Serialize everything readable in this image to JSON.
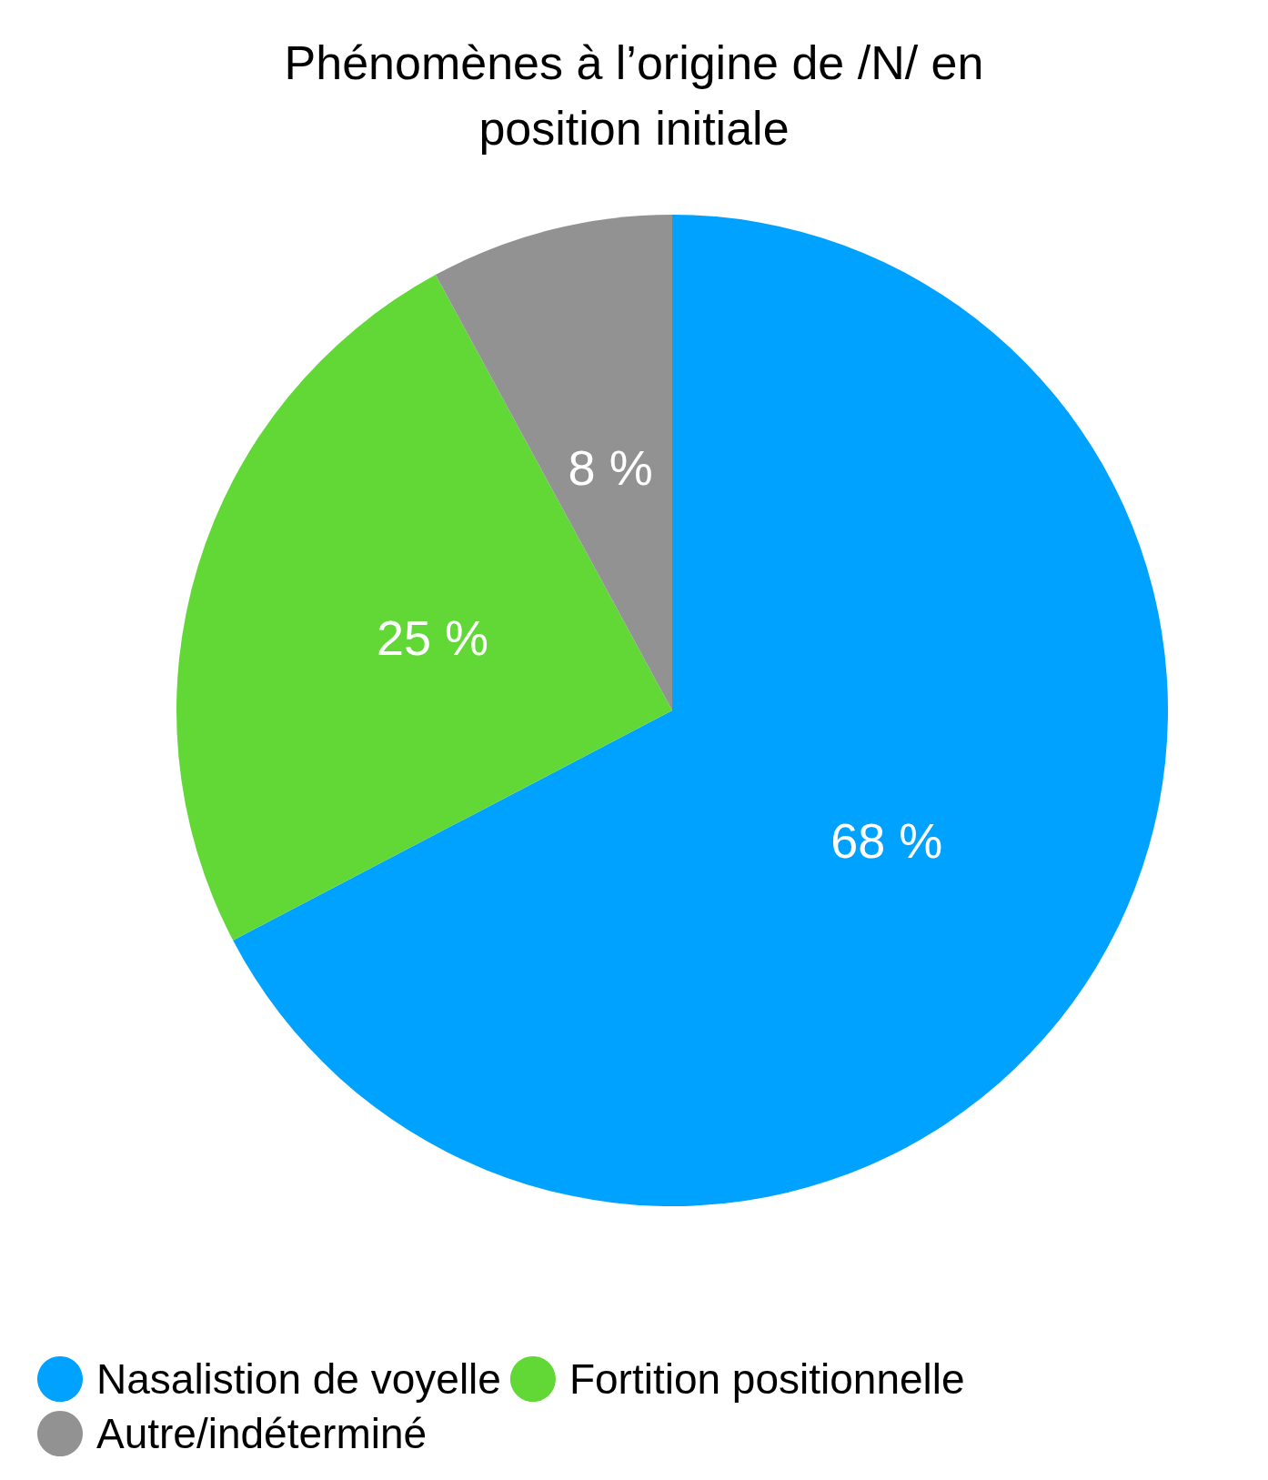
{
  "chart_data": {
    "type": "pie",
    "title": "Phénomènes à l’origine de /N/ en\nposition initiale",
    "categories": [
      "Nasalistion de voyelle",
      "Fortition positionnelle",
      "Autre/indéterminé"
    ],
    "values": [
      68,
      25,
      8
    ],
    "value_labels": [
      "68 %",
      "25 %",
      "8 %"
    ],
    "colors": [
      "#00a2ff",
      "#61d836",
      "#929292"
    ],
    "legend": "bottom"
  }
}
